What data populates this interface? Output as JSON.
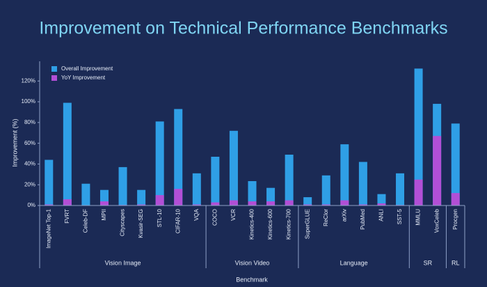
{
  "chart_data": {
    "type": "bar",
    "title": "Improvement on Technical Performance Benchmarks",
    "y_label": "Improvement (%)",
    "x_label": "Benchmark",
    "groups": [
      {
        "name": "Vision Image",
        "categories": [
          "ImageNet Top-1",
          "FVRT",
          "Celeb-DF",
          "MPII",
          "Cityscapes",
          "Kvasir-SEG",
          "STL-10",
          "CIFAR-10",
          "VQA"
        ]
      },
      {
        "name": "Vision Video",
        "categories": [
          "COCO",
          "VCR",
          "Kinetics-400",
          "Kinetics-600",
          "Kinetics-700"
        ]
      },
      {
        "name": "Language",
        "categories": [
          "SuperGLUE",
          "ReClor",
          "arXiv",
          "PubMed",
          "ANLI",
          "SST-5"
        ]
      },
      {
        "name": "SR",
        "categories": [
          "MMLU",
          "VoxCeleb"
        ]
      },
      {
        "name": "RL",
        "categories": [
          "Procgen"
        ]
      }
    ],
    "series": [
      {
        "name": "Overall Improvement",
        "color": "#2f9fe6",
        "values": [
          44,
          99,
          21,
          15,
          37,
          15,
          81,
          93,
          31,
          47,
          72,
          23.5,
          17,
          49,
          8,
          29,
          59,
          42,
          11,
          31,
          132,
          98,
          79
        ]
      },
      {
        "name": "YoY Improvement",
        "color": "#b24fd6",
        "values": [
          1,
          6,
          0,
          4,
          0.5,
          1,
          10,
          16,
          1,
          3,
          5,
          4,
          4,
          5,
          1,
          1,
          5,
          1,
          2,
          0.5,
          25,
          67,
          12
        ]
      }
    ],
    "ylim": [
      0,
      139
    ],
    "yticks": [
      {
        "value": 0,
        "label": "0%"
      },
      {
        "value": 20,
        "label": "20%"
      },
      {
        "value": 40,
        "label": "40%"
      },
      {
        "value": 60,
        "label": "60%"
      },
      {
        "value": 80,
        "label": "80%"
      },
      {
        "value": 100,
        "label": "100%"
      },
      {
        "value": 120,
        "label": "120%"
      }
    ],
    "legend": "top-left"
  }
}
